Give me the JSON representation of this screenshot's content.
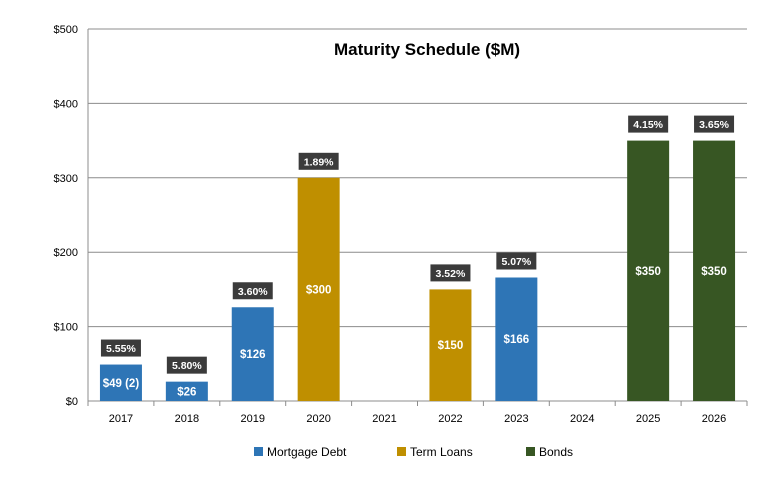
{
  "chart_data": {
    "type": "bar",
    "title": "Maturity Schedule ($M)",
    "xlabel": "",
    "ylabel": "",
    "ylim": [
      0,
      500
    ],
    "y_ticks": [
      0,
      100,
      200,
      300,
      400,
      500
    ],
    "y_tick_labels": [
      "$0",
      "$100",
      "$200",
      "$300",
      "$400",
      "$500"
    ],
    "grid": true,
    "legend_position": "bottom-center",
    "categories": [
      "2017",
      "2018",
      "2019",
      "2020",
      "2021",
      "2022",
      "2023",
      "2024",
      "2025",
      "2026"
    ],
    "series": [
      {
        "name": "Mortgage Debt",
        "color": "#2E75B6"
      },
      {
        "name": "Term Loans",
        "color": "#BF8F00"
      },
      {
        "name": "Bonds",
        "color": "#375623"
      }
    ],
    "bars": [
      {
        "category": "2017",
        "series": "Mortgage Debt",
        "value": 49,
        "label": "$49 (2)",
        "rate": "5.55%"
      },
      {
        "category": "2018",
        "series": "Mortgage Debt",
        "value": 26,
        "label": "$26",
        "rate": "5.80%"
      },
      {
        "category": "2019",
        "series": "Mortgage Debt",
        "value": 126,
        "label": "$126",
        "rate": "3.60%"
      },
      {
        "category": "2020",
        "series": "Term Loans",
        "value": 300,
        "label": "$300",
        "rate": "1.89%"
      },
      {
        "category": "2022",
        "series": "Term Loans",
        "value": 150,
        "label": "$150",
        "rate": "3.52%"
      },
      {
        "category": "2023",
        "series": "Mortgage Debt",
        "value": 166,
        "label": "$166",
        "rate": "5.07%"
      },
      {
        "category": "2025",
        "series": "Bonds",
        "value": 350,
        "label": "$350",
        "rate": "4.15%"
      },
      {
        "category": "2026",
        "series": "Bonds",
        "value": 350,
        "label": "$350",
        "rate": "3.65%"
      }
    ]
  }
}
